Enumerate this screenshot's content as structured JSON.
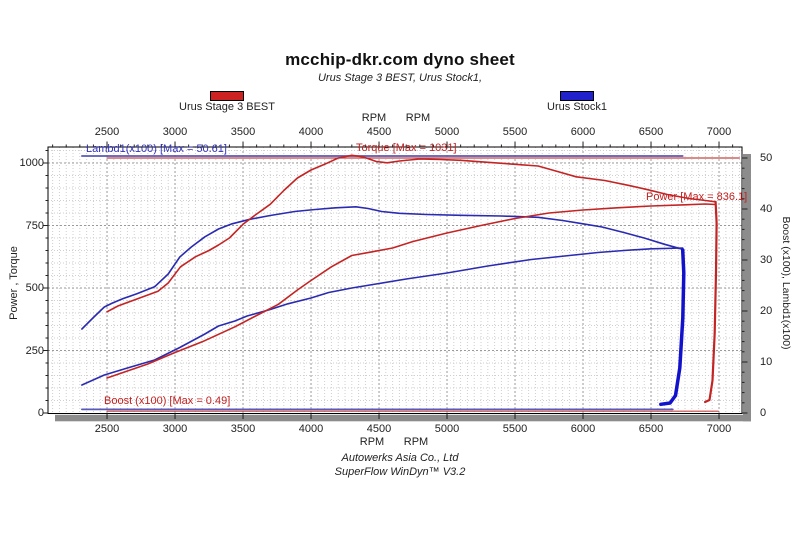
{
  "header": {
    "title": "mcchip-dkr.com dyno sheet",
    "subtitle": "Urus Stage 3 BEST, Urus Stock1,"
  },
  "legend": {
    "stage3": {
      "label": "Urus Stage 3 BEST",
      "color": "#cc2222"
    },
    "stock": {
      "label": "Urus Stock1",
      "color": "#2222cc"
    }
  },
  "footer": {
    "line1": "Autowerks Asia Co., Ltd",
    "line2": "SuperFlow WinDyn™ V3.2"
  },
  "chart_data": {
    "type": "line",
    "title": "mcchip-dkr.com dyno sheet",
    "subtitle": "Urus Stage 3 BEST, Urus Stock1,",
    "grid": "dotted minor + darker major",
    "legend_position": "top",
    "x_axis": {
      "unit": "RPM",
      "min": 2066,
      "max": 7169,
      "ticks": [
        2500,
        3000,
        3500,
        4000,
        4500,
        5000,
        5500,
        6000,
        6500,
        7000
      ],
      "minor_grid_step": 50,
      "minor_tick_step": 100
    },
    "y_left": {
      "label": "Power , Torque",
      "min": 0,
      "max": 1064,
      "ticks": [
        1000,
        750,
        500,
        250,
        0
      ],
      "minor_step": 50
    },
    "y_right": {
      "label": "Boost (x100), Lambd1(x100)",
      "min": 0,
      "max": 52.2,
      "ticks": [
        50,
        40,
        30,
        20,
        10,
        0
      ],
      "minor_step": 2
    },
    "annotations": {
      "lambda": {
        "text": "Lambd1(x100) [Max = 50.61]",
        "color": "#3333bb"
      },
      "torque": {
        "text": "Torque [Max = 1031]",
        "color": "#c42222"
      },
      "power": {
        "text": "Power  [Max = 836.1]",
        "color": "#c42222"
      },
      "boost": {
        "text": "Boost (x100) [Max = 0.49]",
        "color": "#c42222"
      }
    },
    "series": [
      {
        "id": "lambda-red",
        "name": "Lambd1(x100) Urus Stage 3 BEST",
        "axis": "right",
        "color": "#c84545",
        "width": 1.2,
        "points": [
          [
            2500,
            50.0
          ],
          [
            7150,
            50.0
          ]
        ]
      },
      {
        "id": "boost-red",
        "name": "Boost(x100) Urus Stage 3 BEST",
        "axis": "right",
        "color": "#c84545",
        "width": 1.2,
        "points": [
          [
            2500,
            0.35
          ],
          [
            6995,
            0.35
          ]
        ]
      },
      {
        "id": "lambda-blue",
        "name": "Lambd1(x100) Urus Stock1",
        "axis": "right",
        "color": "#5a5ab8",
        "width": 1.8,
        "points": [
          [
            2315,
            50.4
          ],
          [
            6733,
            50.4
          ]
        ]
      },
      {
        "id": "boost-blue",
        "name": "Boost(x100) Urus Stock1",
        "axis": "right",
        "color": "#5a5ab8",
        "width": 1.8,
        "points": [
          [
            2315,
            0.7
          ],
          [
            6660,
            0.7
          ]
        ]
      },
      {
        "id": "torque-stock",
        "name": "Torque Urus Stock1",
        "axis": "left",
        "color": "#2a2ab2",
        "width": 1.6,
        "points": [
          [
            2315,
            336
          ],
          [
            2400,
            382
          ],
          [
            2480,
            424
          ],
          [
            2540,
            440
          ],
          [
            2620,
            458
          ],
          [
            2720,
            477
          ],
          [
            2850,
            505
          ],
          [
            2950,
            556
          ],
          [
            3035,
            624
          ],
          [
            3120,
            664
          ],
          [
            3220,
            705
          ],
          [
            3320,
            736
          ],
          [
            3420,
            757
          ],
          [
            3550,
            775
          ],
          [
            3700,
            790
          ],
          [
            3880,
            806
          ],
          [
            4030,
            814
          ],
          [
            4180,
            821
          ],
          [
            4330,
            825
          ],
          [
            4420,
            818
          ],
          [
            4520,
            806
          ],
          [
            4650,
            799
          ],
          [
            4850,
            794
          ],
          [
            5100,
            791
          ],
          [
            5400,
            788
          ],
          [
            5670,
            783
          ],
          [
            5850,
            770
          ],
          [
            6000,
            757
          ],
          [
            6140,
            744
          ],
          [
            6300,
            722
          ],
          [
            6450,
            700
          ],
          [
            6600,
            675
          ],
          [
            6733,
            655
          ]
        ]
      },
      {
        "id": "power-stock",
        "name": "Power Urus Stock1",
        "axis": "left",
        "color": "#2a2ab2",
        "width": 1.6,
        "points": [
          [
            2315,
            112
          ],
          [
            2480,
            152
          ],
          [
            2650,
            180
          ],
          [
            2850,
            212
          ],
          [
            3035,
            262
          ],
          [
            3220,
            316
          ],
          [
            3320,
            348
          ],
          [
            3440,
            368
          ],
          [
            3530,
            388
          ],
          [
            3700,
            414
          ],
          [
            3830,
            437
          ],
          [
            4000,
            460
          ],
          [
            4130,
            482
          ],
          [
            4300,
            500
          ],
          [
            4500,
            518
          ],
          [
            4700,
            536
          ],
          [
            5000,
            560
          ],
          [
            5300,
            588
          ],
          [
            5620,
            614
          ],
          [
            5900,
            630
          ],
          [
            6110,
            642
          ],
          [
            6300,
            650
          ],
          [
            6500,
            657
          ],
          [
            6733,
            660
          ]
        ]
      },
      {
        "id": "torque-stage3",
        "name": "Torque Urus Stage 3 BEST (Max 1031)",
        "axis": "left",
        "color": "#c42424",
        "width": 1.6,
        "points": [
          [
            2500,
            405
          ],
          [
            2580,
            428
          ],
          [
            2700,
            452
          ],
          [
            2875,
            487
          ],
          [
            2950,
            520
          ],
          [
            3040,
            585
          ],
          [
            3150,
            625
          ],
          [
            3250,
            650
          ],
          [
            3320,
            672
          ],
          [
            3400,
            700
          ],
          [
            3500,
            755
          ],
          [
            3585,
            790
          ],
          [
            3700,
            835
          ],
          [
            3800,
            890
          ],
          [
            3900,
            940
          ],
          [
            4000,
            972
          ],
          [
            4100,
            995
          ],
          [
            4200,
            1020
          ],
          [
            4300,
            1031
          ],
          [
            4380,
            1025
          ],
          [
            4480,
            1006
          ],
          [
            4560,
            1001
          ],
          [
            4650,
            1008
          ],
          [
            4800,
            1016
          ],
          [
            4950,
            1014
          ],
          [
            5100,
            1011
          ],
          [
            5300,
            1003
          ],
          [
            5500,
            995
          ],
          [
            5670,
            988
          ],
          [
            5800,
            968
          ],
          [
            5950,
            945
          ],
          [
            6160,
            930
          ],
          [
            6350,
            909
          ],
          [
            6480,
            893
          ],
          [
            6620,
            874
          ],
          [
            6780,
            858
          ],
          [
            6900,
            850
          ],
          [
            6975,
            845
          ]
        ]
      },
      {
        "id": "power-stage3",
        "name": "Power Urus Stage 3 BEST (Max 836.1)",
        "axis": "left",
        "color": "#c42424",
        "width": 1.6,
        "points": [
          [
            2500,
            140
          ],
          [
            2650,
            168
          ],
          [
            2800,
            196
          ],
          [
            3000,
            242
          ],
          [
            3200,
            285
          ],
          [
            3440,
            345
          ],
          [
            3600,
            390
          ],
          [
            3760,
            435
          ],
          [
            3900,
            492
          ],
          [
            4000,
            530
          ],
          [
            4150,
            585
          ],
          [
            4300,
            630
          ],
          [
            4450,
            645
          ],
          [
            4600,
            660
          ],
          [
            4750,
            686
          ],
          [
            5000,
            720
          ],
          [
            5250,
            750
          ],
          [
            5500,
            778
          ],
          [
            5750,
            800
          ],
          [
            6000,
            812
          ],
          [
            6250,
            821
          ],
          [
            6500,
            828
          ],
          [
            6750,
            833
          ],
          [
            6900,
            836
          ],
          [
            6975,
            834
          ]
        ]
      },
      {
        "id": "run-end-stock",
        "name": "Run end Urus Stock1",
        "axis": "left",
        "color": "#1212cc",
        "width": 3.5,
        "points": [
          [
            6733,
            652
          ],
          [
            6741,
            560
          ],
          [
            6734,
            380
          ],
          [
            6712,
            180
          ],
          [
            6680,
            70
          ],
          [
            6640,
            40
          ],
          [
            6572,
            35
          ]
        ]
      },
      {
        "id": "run-end-stage3",
        "name": "Run end Urus Stage 3 BEST",
        "axis": "left",
        "color": "#c42424",
        "width": 2.2,
        "points": [
          [
            6975,
            845
          ],
          [
            6982,
            760
          ],
          [
            6978,
            560
          ],
          [
            6968,
            320
          ],
          [
            6952,
            130
          ],
          [
            6930,
            52
          ],
          [
            6898,
            44
          ]
        ]
      }
    ]
  }
}
